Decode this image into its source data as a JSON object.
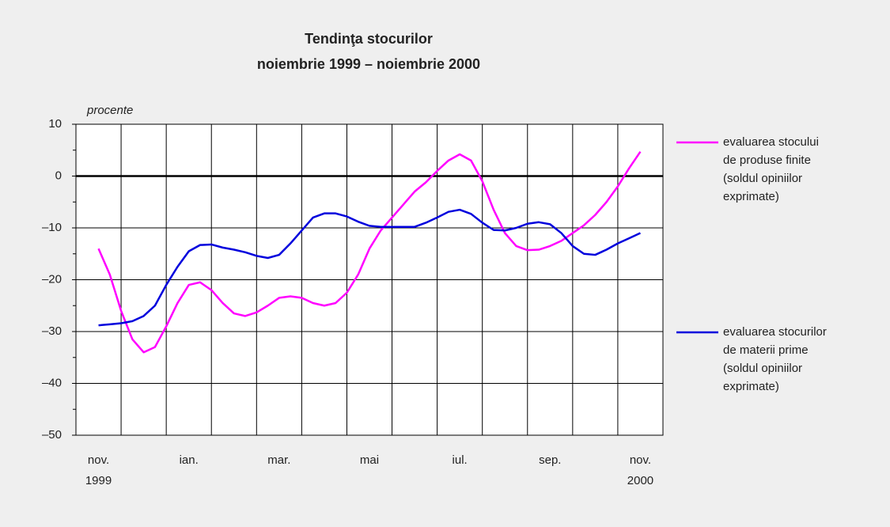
{
  "chart_data": {
    "type": "line",
    "title": "Tendinţa stocurilor",
    "subtitle": "noiembrie 1999 – noiembrie 2000",
    "y_label": "procente",
    "x": [
      0,
      0.25,
      0.5,
      0.75,
      1,
      1.25,
      1.5,
      1.75,
      2,
      2.25,
      2.5,
      2.75,
      3,
      3.25,
      3.5,
      3.75,
      4,
      4.25,
      4.5,
      4.75,
      5,
      5.25,
      5.5,
      5.75,
      6,
      6.25,
      6.5,
      6.75,
      7,
      7.25,
      7.5,
      7.75,
      8,
      8.25,
      8.5,
      8.75,
      9,
      9.25,
      9.5,
      9.75,
      10,
      10.25,
      10.5,
      10.75,
      11,
      11.25,
      11.5,
      11.75,
      12
    ],
    "series": [
      {
        "name": "evaluarea stocului de produse finite (soldul opiniilor exprimate)",
        "color": "#ff00ff",
        "values": [
          -14,
          -19,
          -26,
          -31.5,
          -34,
          -33,
          -29,
          -24.5,
          -21,
          -20.5,
          -22,
          -24.5,
          -26.5,
          -27,
          -26.3,
          -25,
          -23.5,
          -23.2,
          -23.5,
          -24.5,
          -25,
          -24.5,
          -22.5,
          -19,
          -14,
          -10.5,
          -8,
          -5.5,
          -3,
          -1.2,
          1,
          3,
          4.2,
          3,
          -1,
          -6.5,
          -11,
          -13.5,
          -14.3,
          -14.2,
          -13.5,
          -12.5,
          -11,
          -9.5,
          -7.5,
          -5,
          -2,
          1.5,
          4.7
        ]
      },
      {
        "name": "evaluarea stocurilor de materii prime (soldul opiniilor exprimate)",
        "color": "#0000dd",
        "values": [
          -28.8,
          -28.6,
          -28.4,
          -28,
          -27,
          -25,
          -21,
          -17.5,
          -14.5,
          -13.3,
          -13.2,
          -13.8,
          -14.2,
          -14.7,
          -15.4,
          -15.8,
          -15.2,
          -13,
          -10.5,
          -8,
          -7.2,
          -7.2,
          -7.8,
          -8.8,
          -9.6,
          -9.8,
          -9.8,
          -9.8,
          -9.8,
          -9,
          -8,
          -6.9,
          -6.5,
          -7.3,
          -9,
          -10.4,
          -10.5,
          -10,
          -9.2,
          -8.9,
          -9.3,
          -11,
          -13.5,
          -15,
          -15.2,
          -14.2,
          -13,
          -12,
          -11
        ]
      }
    ],
    "xlim": [
      -0.5,
      12.5
    ],
    "xticks": [
      {
        "value": 0,
        "label": "nov."
      },
      {
        "value": 2,
        "label": "ian."
      },
      {
        "value": 4,
        "label": "mar."
      },
      {
        "value": 6,
        "label": "mai"
      },
      {
        "value": 8,
        "label": "iul."
      },
      {
        "value": 10,
        "label": "sep."
      },
      {
        "value": 12,
        "label": "nov."
      }
    ],
    "start_year": "1999",
    "end_year": "2000",
    "xgrid": [
      0.5,
      1.5,
      2.5,
      3.5,
      4.5,
      5.5,
      6.5,
      7.5,
      8.5,
      9.5,
      10.5,
      11.5
    ],
    "ylim": [
      -50,
      10
    ],
    "yticks": [
      10,
      0,
      {
        "value": -10,
        "label": "–10"
      },
      {
        "value": -20,
        "label": "–20"
      },
      {
        "value": -30,
        "label": "–30"
      },
      {
        "value": -40,
        "label": "–40"
      },
      {
        "value": -50,
        "label": "–50"
      }
    ],
    "yminor": [
      5,
      -5,
      -15,
      -25,
      -35,
      -45
    ],
    "grid": true,
    "legend": "right"
  }
}
